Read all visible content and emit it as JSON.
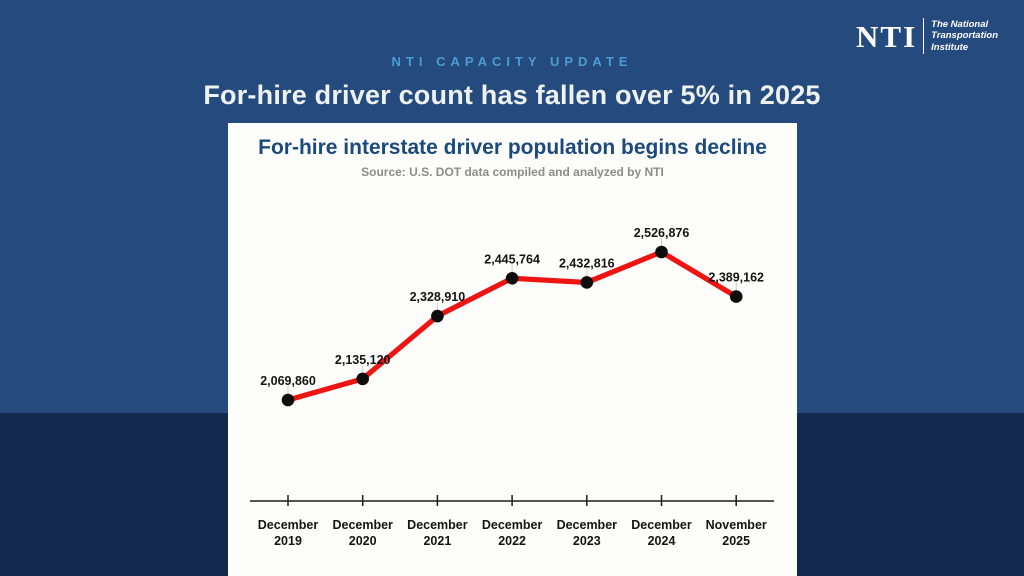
{
  "header": {
    "eyebrow": "NTI CAPACITY UPDATE",
    "title": "For-hire driver count has fallen over 5% in 2025"
  },
  "logo": {
    "acronym": "NTI",
    "name_lines": [
      "The National",
      "Transportation",
      "Institute"
    ]
  },
  "chart": {
    "title": "For-hire interstate driver population begins decline",
    "subtitle": "Source: U.S. DOT data compiled and analyzed by NTI"
  },
  "colors": {
    "background_upper": "#254a7d",
    "background_lower": "#12284d",
    "eyebrow_blue": "#4c9cd3",
    "headline_white": "#eef2f0",
    "chart_title_blue": "#1b4b7c",
    "subtitle_gray": "#8c8c8c",
    "line_red": "#ed1411",
    "dot_black": "#0d0d0d",
    "axis_black": "#1c1c1c",
    "leader_gray": "#cccccc"
  },
  "chart_data": {
    "type": "line",
    "title": "For-hire interstate driver population begins decline",
    "subtitle": "Source: U.S. DOT data compiled and analyzed by NTI",
    "categories": [
      "December 2019",
      "December 2020",
      "December 2021",
      "December 2022",
      "December 2023",
      "December 2024",
      "November 2025"
    ],
    "values": [
      2069860,
      2135120,
      2328910,
      2445764,
      2432816,
      2526876,
      2389162
    ],
    "labels": [
      "2,069,860",
      "2,135,120",
      "2,328,910",
      "2,445,764",
      "2,432,816",
      "2,526,876",
      "2,389,162"
    ],
    "series_name": "For-hire interstate driver population",
    "xlabel": "",
    "ylabel": "",
    "grid": false,
    "legend": false,
    "ylim": [
      2000000,
      2600000
    ]
  }
}
